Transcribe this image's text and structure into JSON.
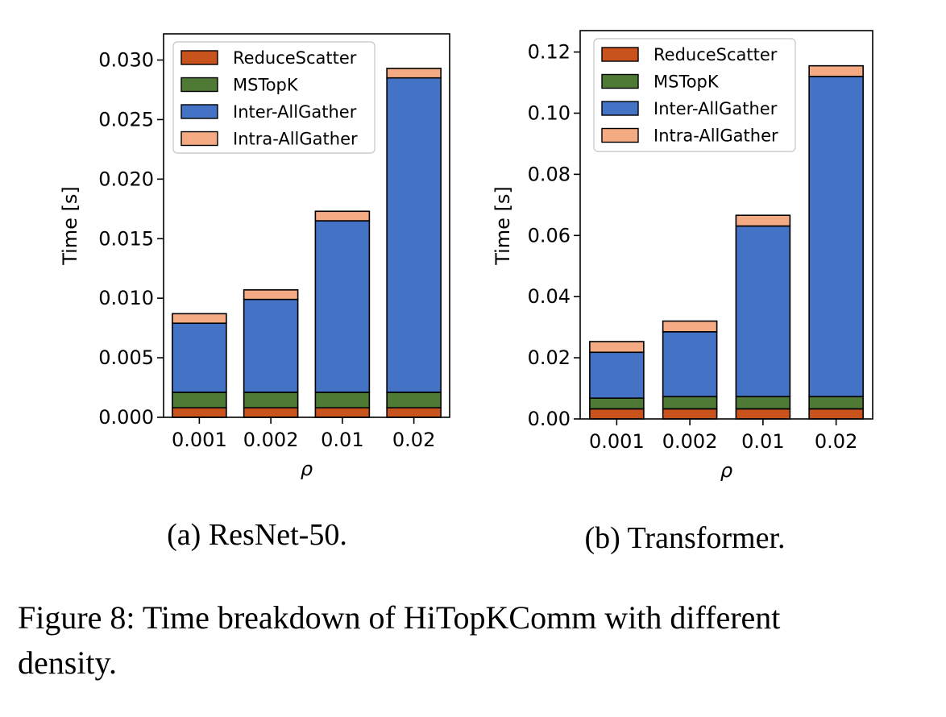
{
  "figure": {
    "caption_line1": "Figure 8: Time breakdown of HiTopKComm with different",
    "caption_line2": "density."
  },
  "colors": {
    "ReduceScatter": "#c8531c",
    "MSTopK": "#4f7a36",
    "Inter-AllGather": "#4472c4",
    "Intra-AllGather": "#f4ab84"
  },
  "chart_data": [
    {
      "type": "bar",
      "stacked": true,
      "subcaption": "(a) ResNet-50.",
      "xlabel": "ρ",
      "ylabel": "Time [s]",
      "categories": [
        "0.001",
        "0.002",
        "0.01",
        "0.02"
      ],
      "ylim": [
        0,
        0.0322
      ],
      "yticks": [
        "0.000",
        "0.005",
        "0.010",
        "0.015",
        "0.020",
        "0.025",
        "0.030"
      ],
      "ytick_values": [
        0,
        0.005,
        0.01,
        0.015,
        0.02,
        0.025,
        0.03
      ],
      "legend_position": "top-left",
      "series": [
        {
          "name": "ReduceScatter",
          "values": [
            0.0008,
            0.0008,
            0.0008,
            0.0008
          ]
        },
        {
          "name": "MSTopK",
          "values": [
            0.0013,
            0.0013,
            0.0013,
            0.0013
          ]
        },
        {
          "name": "Inter-AllGather",
          "values": [
            0.0058,
            0.0078,
            0.0144,
            0.0264
          ]
        },
        {
          "name": "Intra-AllGather",
          "values": [
            0.0008,
            0.0008,
            0.0008,
            0.0008
          ]
        }
      ]
    },
    {
      "type": "bar",
      "stacked": true,
      "subcaption": "(b) Transformer.",
      "xlabel": "ρ",
      "ylabel": "Time [s]",
      "categories": [
        "0.001",
        "0.002",
        "0.01",
        "0.02"
      ],
      "ylim": [
        0,
        0.127
      ],
      "yticks": [
        "0.00",
        "0.02",
        "0.04",
        "0.06",
        "0.08",
        "0.10",
        "0.12"
      ],
      "ytick_values": [
        0,
        0.02,
        0.04,
        0.06,
        0.08,
        0.1,
        0.12
      ],
      "legend_position": "top-left",
      "series": [
        {
          "name": "ReduceScatter",
          "values": [
            0.0033,
            0.0033,
            0.0033,
            0.0033
          ]
        },
        {
          "name": "MSTopK",
          "values": [
            0.0035,
            0.004,
            0.004,
            0.004
          ]
        },
        {
          "name": "Inter-AllGather",
          "values": [
            0.015,
            0.0212,
            0.0558,
            0.1047
          ]
        },
        {
          "name": "Intra-AllGather",
          "values": [
            0.0035,
            0.0035,
            0.0035,
            0.0035
          ]
        }
      ]
    }
  ]
}
